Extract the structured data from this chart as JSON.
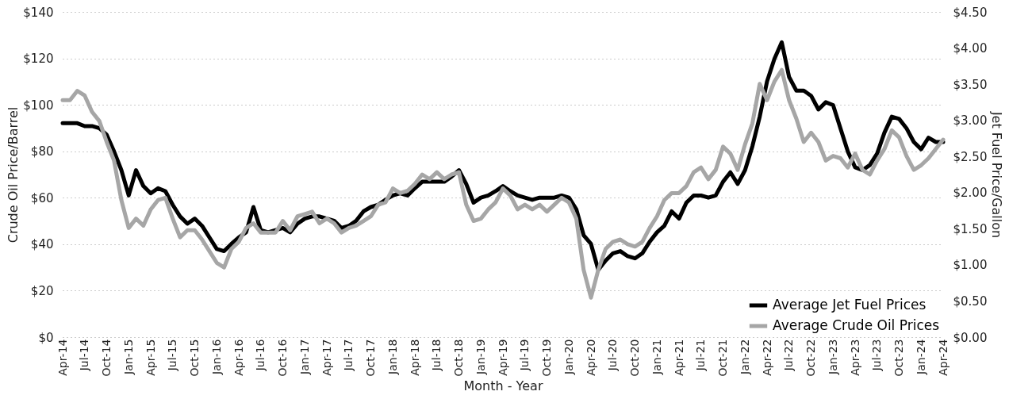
{
  "chart_data": {
    "type": "line",
    "xlabel": "Month - Year",
    "ylabel": "Crude Oil Price/Barrel",
    "y2label": "Jet Fuel Price/Gallon",
    "categories": [
      "Apr-14",
      null,
      null,
      "Jul-14",
      null,
      null,
      "Oct-14",
      null,
      null,
      "Jan-15",
      null,
      null,
      "Apr-15",
      null,
      null,
      "Jul-15",
      null,
      null,
      "Oct-15",
      null,
      null,
      "Jan-16",
      null,
      null,
      "Apr-16",
      null,
      null,
      "Jul-16",
      null,
      null,
      "Oct-16",
      null,
      null,
      "Jan-17",
      null,
      null,
      "Apr-17",
      null,
      null,
      "Jul-17",
      null,
      null,
      "Oct-17",
      null,
      null,
      "Jan-18",
      null,
      null,
      "Apr-18",
      null,
      null,
      "Jul-18",
      null,
      null,
      "Oct-18",
      null,
      null,
      "Jan-19",
      null,
      null,
      "Apr-19",
      null,
      null,
      "Jul-19",
      null,
      null,
      "Oct-19",
      null,
      null,
      "Jan-20",
      null,
      null,
      "Apr-20",
      null,
      null,
      "Jul-20",
      null,
      null,
      "Oct-20",
      null,
      null,
      "Jan-21",
      null,
      null,
      "Apr-21",
      null,
      null,
      "Jul-21",
      null,
      null,
      "Oct-21",
      null,
      null,
      "Jan-22",
      null,
      null,
      "Apr-22",
      null,
      null,
      "Jul-22",
      null,
      null,
      "Oct-22",
      null,
      null,
      "Jan-23",
      null,
      null,
      "Apr-23",
      null,
      null,
      "Jul-23",
      null,
      null,
      "Oct-23",
      null,
      null,
      "Jan-24",
      null,
      null,
      "Apr-24"
    ],
    "series": [
      {
        "name": "Average Jet Fuel Prices",
        "color": "#000000",
        "axis": "y2",
        "values": [
          2.96,
          2.96,
          2.96,
          2.92,
          2.92,
          2.89,
          2.8,
          2.57,
          2.31,
          1.96,
          2.31,
          2.09,
          1.99,
          2.06,
          2.02,
          1.83,
          1.67,
          1.57,
          1.64,
          1.54,
          1.38,
          1.22,
          1.19,
          1.29,
          1.38,
          1.45,
          1.8,
          1.48,
          1.45,
          1.48,
          1.51,
          1.45,
          1.57,
          1.64,
          1.67,
          1.67,
          1.64,
          1.61,
          1.51,
          1.54,
          1.61,
          1.74,
          1.8,
          1.83,
          1.9,
          1.96,
          1.99,
          1.96,
          2.06,
          2.15,
          2.15,
          2.15,
          2.15,
          2.22,
          2.31,
          2.12,
          1.86,
          1.93,
          1.96,
          2.02,
          2.09,
          2.02,
          1.96,
          1.93,
          1.9,
          1.93,
          1.93,
          1.93,
          1.96,
          1.93,
          1.77,
          1.41,
          1.29,
          0.93,
          1.06,
          1.16,
          1.19,
          1.12,
          1.09,
          1.16,
          1.32,
          1.45,
          1.54,
          1.74,
          1.64,
          1.86,
          1.96,
          1.96,
          1.93,
          1.96,
          2.15,
          2.28,
          2.12,
          2.31,
          2.64,
          3.05,
          3.54,
          3.85,
          4.08,
          3.6,
          3.41,
          3.41,
          3.34,
          3.15,
          3.25,
          3.21,
          2.89,
          2.57,
          2.35,
          2.31,
          2.38,
          2.54,
          2.83,
          3.05,
          3.02,
          2.89,
          2.7,
          2.6,
          2.76,
          2.7,
          2.7
        ]
      },
      {
        "name": "Average Crude Oil Prices",
        "color": "#a6a6a6",
        "values": [
          102,
          102,
          106,
          104,
          97,
          93,
          84,
          76,
          59,
          47,
          51,
          48,
          55,
          59,
          60,
          51,
          43,
          46,
          46,
          42,
          37,
          32,
          30,
          38,
          41,
          47,
          49,
          45,
          45,
          45,
          50,
          46,
          52,
          53,
          54,
          49,
          51,
          49,
          45,
          47,
          48,
          50,
          52,
          57,
          58,
          64,
          62,
          63,
          66,
          70,
          68,
          71,
          68,
          70,
          71,
          57,
          50,
          51,
          55,
          58,
          64,
          61,
          55,
          57,
          55,
          57,
          54,
          57,
          60,
          58,
          51,
          29,
          17,
          29,
          38,
          41,
          42,
          40,
          39,
          41,
          47,
          52,
          59,
          62,
          62,
          65,
          71,
          73,
          68,
          72,
          82,
          79,
          72,
          83,
          92,
          109,
          102,
          110,
          115,
          102,
          94,
          84,
          88,
          84,
          76,
          78,
          77,
          73,
          79,
          72,
          70,
          76,
          81,
          89,
          86,
          78,
          72,
          74,
          77,
          81,
          85
        ]
      }
    ],
    "ylim": [
      0,
      140
    ],
    "yticks": [
      {
        "value": 0,
        "label": "$0"
      },
      {
        "value": 20,
        "label": "$20"
      },
      {
        "value": 40,
        "label": "$40"
      },
      {
        "value": 60,
        "label": "$60"
      },
      {
        "value": 80,
        "label": "$80"
      },
      {
        "value": 100,
        "label": "$100"
      },
      {
        "value": 120,
        "label": "$120"
      },
      {
        "value": 140,
        "label": "$140"
      }
    ],
    "y2lim": [
      0,
      4.5
    ],
    "y2ticks": [
      {
        "value": 0,
        "label": "$0.00"
      },
      {
        "value": 0.5,
        "label": "$0.50"
      },
      {
        "value": 1,
        "label": "$1.00"
      },
      {
        "value": 1.5,
        "label": "$1.50"
      },
      {
        "value": 2,
        "label": "$2.00"
      },
      {
        "value": 2.5,
        "label": "$2.50"
      },
      {
        "value": 3,
        "label": "$3.00"
      },
      {
        "value": 3.5,
        "label": "$3.50"
      },
      {
        "value": 4,
        "label": "$4.00"
      },
      {
        "value": 4.5,
        "label": "$4.50"
      }
    ],
    "grid": "y",
    "legend": "bottom right"
  }
}
